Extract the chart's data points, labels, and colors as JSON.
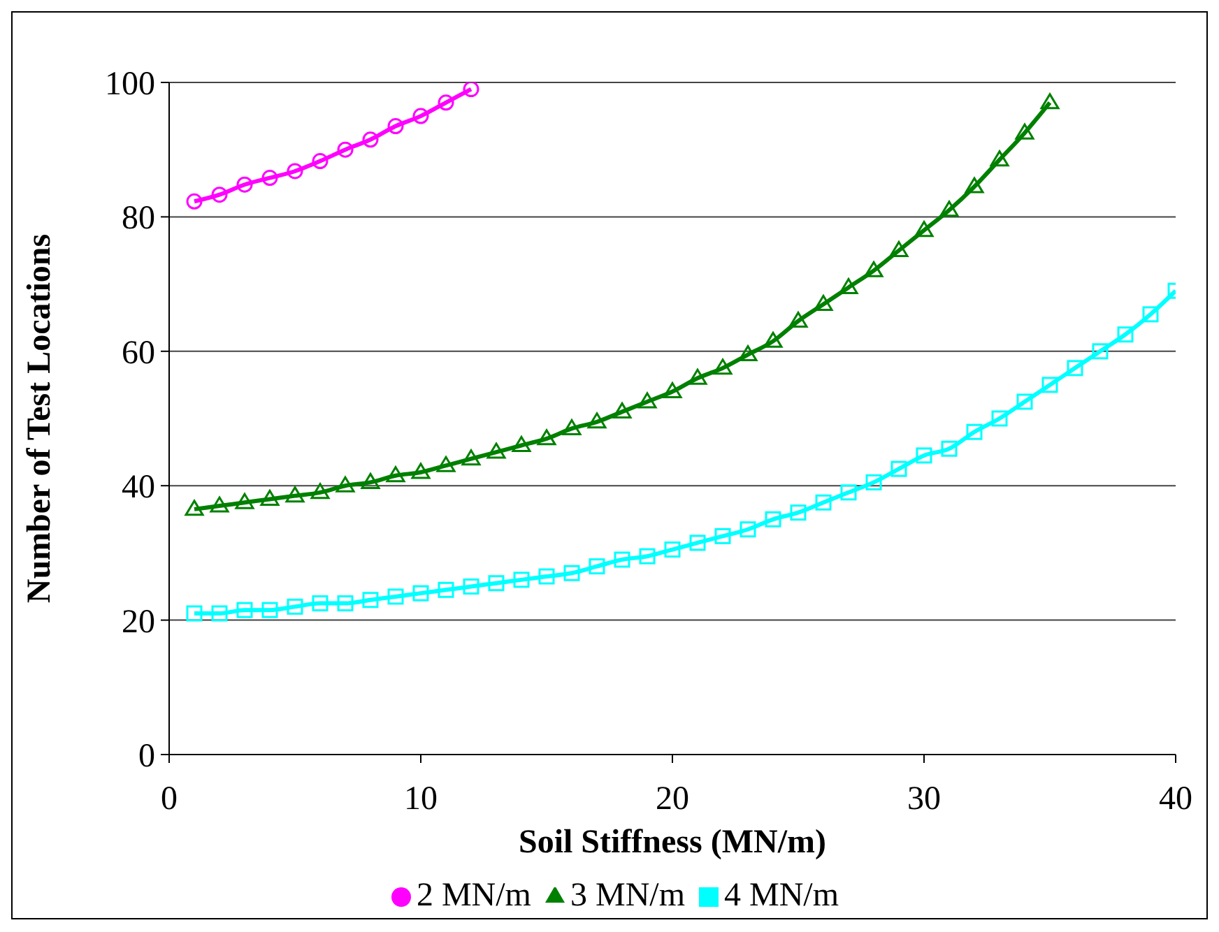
{
  "chart_data": {
    "type": "line",
    "xlabel": "Soil Stiffness (MN/m)",
    "ylabel": "Number of Test Locations",
    "xlim": [
      0,
      40
    ],
    "xticks": [
      0,
      10,
      20,
      30,
      40
    ],
    "ylim": [
      0,
      100
    ],
    "yticks": [
      0,
      20,
      40,
      60,
      80,
      100
    ],
    "grid": "y",
    "legend": "bottom",
    "line_style": "solid",
    "series": [
      {
        "name": "2 MN/m",
        "color": "#ff00ff",
        "marker": "circle",
        "x": [
          1,
          2,
          3,
          4,
          5,
          6,
          7,
          8,
          9,
          10,
          11,
          12
        ],
        "values": [
          82.3,
          83.3,
          84.8,
          85.8,
          86.8,
          88.3,
          90,
          91.5,
          93.5,
          95,
          97,
          99
        ]
      },
      {
        "name": "3 MN/m",
        "color": "#008000",
        "marker": "triangle",
        "x": [
          1,
          2,
          3,
          4,
          5,
          6,
          7,
          8,
          9,
          10,
          11,
          12,
          13,
          14,
          15,
          16,
          17,
          18,
          19,
          20,
          21,
          22,
          23,
          24,
          25,
          26,
          27,
          28,
          29,
          30,
          31,
          32,
          33,
          34,
          35
        ],
        "values": [
          36.5,
          37,
          37.5,
          38,
          38.5,
          39,
          40,
          40.5,
          41.5,
          42,
          43,
          44,
          45,
          46,
          47,
          48.5,
          49.5,
          51,
          52.5,
          54,
          56,
          57.5,
          59.5,
          61.5,
          64.5,
          67,
          69.5,
          72,
          75,
          78,
          81,
          84.5,
          88.5,
          92.5,
          97
        ]
      },
      {
        "name": "4 MN/m",
        "color": "#00ffff",
        "marker": "square",
        "x": [
          1,
          2,
          3,
          4,
          5,
          6,
          7,
          8,
          9,
          10,
          11,
          12,
          13,
          14,
          15,
          16,
          17,
          18,
          19,
          20,
          21,
          22,
          23,
          24,
          25,
          26,
          27,
          28,
          29,
          30,
          31,
          32,
          33,
          34,
          35,
          36,
          37,
          38,
          39,
          40
        ],
        "values": [
          21,
          21,
          21.5,
          21.5,
          22,
          22.5,
          22.5,
          23,
          23.5,
          24,
          24.5,
          25,
          25.5,
          26,
          26.5,
          27,
          28,
          29,
          29.5,
          30.5,
          31.5,
          32.5,
          33.5,
          35,
          36,
          37.5,
          39,
          40.5,
          42.5,
          44.5,
          45.5,
          48,
          50,
          52.5,
          55,
          57.5,
          60,
          62.5,
          65.5,
          69
        ]
      }
    ]
  }
}
